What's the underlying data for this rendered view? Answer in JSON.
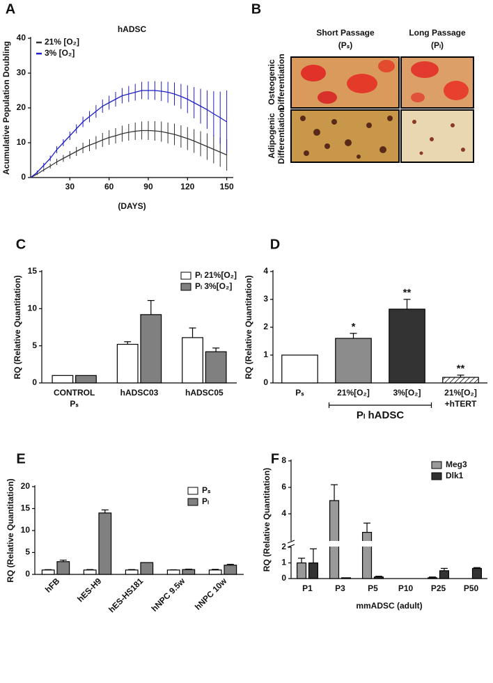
{
  "chart_data": [
    {
      "panel": "A",
      "type": "line",
      "title": "hADSC",
      "xlabel": "(DAYS)",
      "ylabel": "Acumulative Population Doubling",
      "x": [
        0,
        5,
        10,
        15,
        20,
        25,
        30,
        35,
        40,
        45,
        50,
        55,
        60,
        65,
        70,
        75,
        80,
        85,
        90,
        95,
        100,
        105,
        110,
        115,
        120,
        125,
        130,
        135,
        140,
        145,
        150
      ],
      "series": [
        {
          "name": "21% [O₂]",
          "color": "#333333",
          "values": [
            0,
            1,
            2.2,
            3.3,
            4.5,
            5.5,
            6.5,
            7.5,
            8.5,
            9.3,
            10,
            10.8,
            11.5,
            12,
            12.6,
            13,
            13.3,
            13.5,
            13.5,
            13.4,
            13.2,
            12.8,
            12.4,
            11.8,
            11.2,
            10.5,
            9.7,
            8.9,
            8.1,
            7.3,
            6.5
          ],
          "errors": [
            0,
            0.3,
            0.5,
            0.7,
            0.9,
            1,
            1.1,
            1.3,
            1.5,
            1.7,
            1.9,
            2,
            2.1,
            2.2,
            2.3,
            2.4,
            2.5,
            2.6,
            2.7,
            2.8,
            2.9,
            3,
            3.1,
            3.2,
            3.3,
            3.4,
            3.6,
            3.8,
            4,
            4.2,
            4.5
          ]
        },
        {
          "name": "3% [O₂]",
          "color": "#1f1fc4",
          "values": [
            0,
            1.5,
            3.5,
            5.5,
            8,
            10,
            12,
            14,
            16,
            17.5,
            19,
            20.5,
            21.5,
            22.5,
            23.5,
            24,
            24.5,
            25,
            25,
            25,
            24.8,
            24.5,
            24,
            23.3,
            22.5,
            21.5,
            20.5,
            19.5,
            18.3,
            17.2,
            16
          ],
          "errors": [
            0,
            0.5,
            0.7,
            0.8,
            1,
            1,
            1.2,
            1.3,
            1.5,
            1.6,
            1.8,
            1.9,
            2,
            2.1,
            2.2,
            2.3,
            2.4,
            2.5,
            2.6,
            2.7,
            2.8,
            3,
            3.3,
            3.6,
            4,
            4.5,
            5,
            5.5,
            6.5,
            7.5,
            9
          ]
        }
      ],
      "xlim": [
        0,
        155
      ],
      "ylim": [
        0,
        40
      ],
      "xticks": [
        30,
        60,
        90,
        120,
        150
      ],
      "yticks": [
        0,
        10,
        20,
        30,
        40
      ],
      "legend": "upper left"
    },
    {
      "panel": "B",
      "type": "image_grid",
      "column_labels": [
        [
          "Short Passage",
          "(Pₛ)"
        ],
        [
          "Long Passage",
          "(Pₗ)"
        ]
      ],
      "row_labels": [
        [
          "Osteogenic",
          "Differentiation"
        ],
        [
          "Adipogenic",
          "Differentiation"
        ]
      ]
    },
    {
      "panel": "C",
      "type": "bar",
      "ylabel": "RQ (Relative Quantitation)",
      "categories": [
        "CONTROL",
        "hADSC03",
        "hADSC05"
      ],
      "category_notes": [
        "Pₛ",
        null,
        null
      ],
      "series": [
        {
          "name": "Pₗ 21%[O₂]",
          "color": "#ffffff",
          "values": [
            1,
            5.2,
            6.1
          ],
          "errors": [
            0,
            0.35,
            1.3
          ]
        },
        {
          "name": "Pₗ 3%[O₂]",
          "color": "#808080",
          "values": [
            1,
            9.2,
            4.2
          ],
          "errors": [
            0,
            1.9,
            0.5
          ]
        }
      ],
      "ylim": [
        0,
        15
      ],
      "yticks": [
        0,
        5,
        10,
        15
      ],
      "legend": "upper right"
    },
    {
      "panel": "D",
      "type": "bar",
      "ylabel": "RQ (Relative Quantitation)",
      "categories": [
        "Pₛ",
        "21%[O₂]",
        "3%[O₂]",
        "21%[O₂]"
      ],
      "category_notes": [
        null,
        null,
        null,
        "+hTERT"
      ],
      "series": [
        {
          "colors": [
            "#ffffff",
            "#8c8c8c",
            "#333333",
            "#ffffff"
          ],
          "hatched": [
            false,
            false,
            false,
            true
          ],
          "values": [
            1,
            1.6,
            2.65,
            0.2
          ],
          "errors": [
            0,
            0.18,
            0.35,
            0.08
          ],
          "annotations": [
            null,
            "*",
            "**",
            "**"
          ]
        }
      ],
      "group_label": "Pₗ hADSC",
      "group_span": [
        1,
        2
      ],
      "ylim": [
        0,
        4
      ],
      "yticks": [
        0,
        1,
        2,
        3,
        4
      ]
    },
    {
      "panel": "E",
      "type": "bar",
      "ylabel": "RQ (Relative Quantitation)",
      "categories": [
        "hFB",
        "hES-H9",
        "hES-HS181",
        "hNPC 9.5w",
        "hNPC 10w"
      ],
      "xtick_rotation": -45,
      "series": [
        {
          "name": "Pₛ",
          "color": "#ffffff",
          "values": [
            1,
            1,
            1,
            1,
            1
          ],
          "errors": [
            0.08,
            0.1,
            0.1,
            0.05,
            0.15
          ]
        },
        {
          "name": "Pₗ",
          "color": "#808080",
          "values": [
            2.9,
            14,
            2.7,
            1.1,
            2.1
          ],
          "errors": [
            0.35,
            0.7,
            0,
            0.1,
            0.2
          ]
        }
      ],
      "ylim": [
        0,
        20
      ],
      "yticks": [
        0,
        5,
        10,
        15,
        20
      ],
      "legend": "upper right"
    },
    {
      "panel": "F",
      "type": "bar",
      "ylabel": "RQ (Relative Quantitation)",
      "xlabel": "mmADSC (adult)",
      "categories": [
        "P1",
        "P3",
        "P5",
        "P10",
        "P25",
        "P50"
      ],
      "series": [
        {
          "name": "Meg3",
          "color": "#999999",
          "values": [
            1,
            5,
            2.6,
            0,
            0.05,
            0
          ],
          "errors": [
            0.3,
            1.2,
            0.7,
            0,
            0.05,
            0
          ]
        },
        {
          "name": "Dlk1",
          "color": "#333333",
          "values": [
            1,
            0.05,
            0.1,
            0,
            0.5,
            0.65
          ],
          "errors": [
            0.9,
            0,
            0.05,
            0,
            0.15,
            0.05
          ]
        }
      ],
      "ylim": [
        0,
        8
      ],
      "ybreak": 2,
      "yticks": [
        0,
        1,
        2,
        4,
        6,
        8
      ],
      "legend": "upper right"
    }
  ]
}
